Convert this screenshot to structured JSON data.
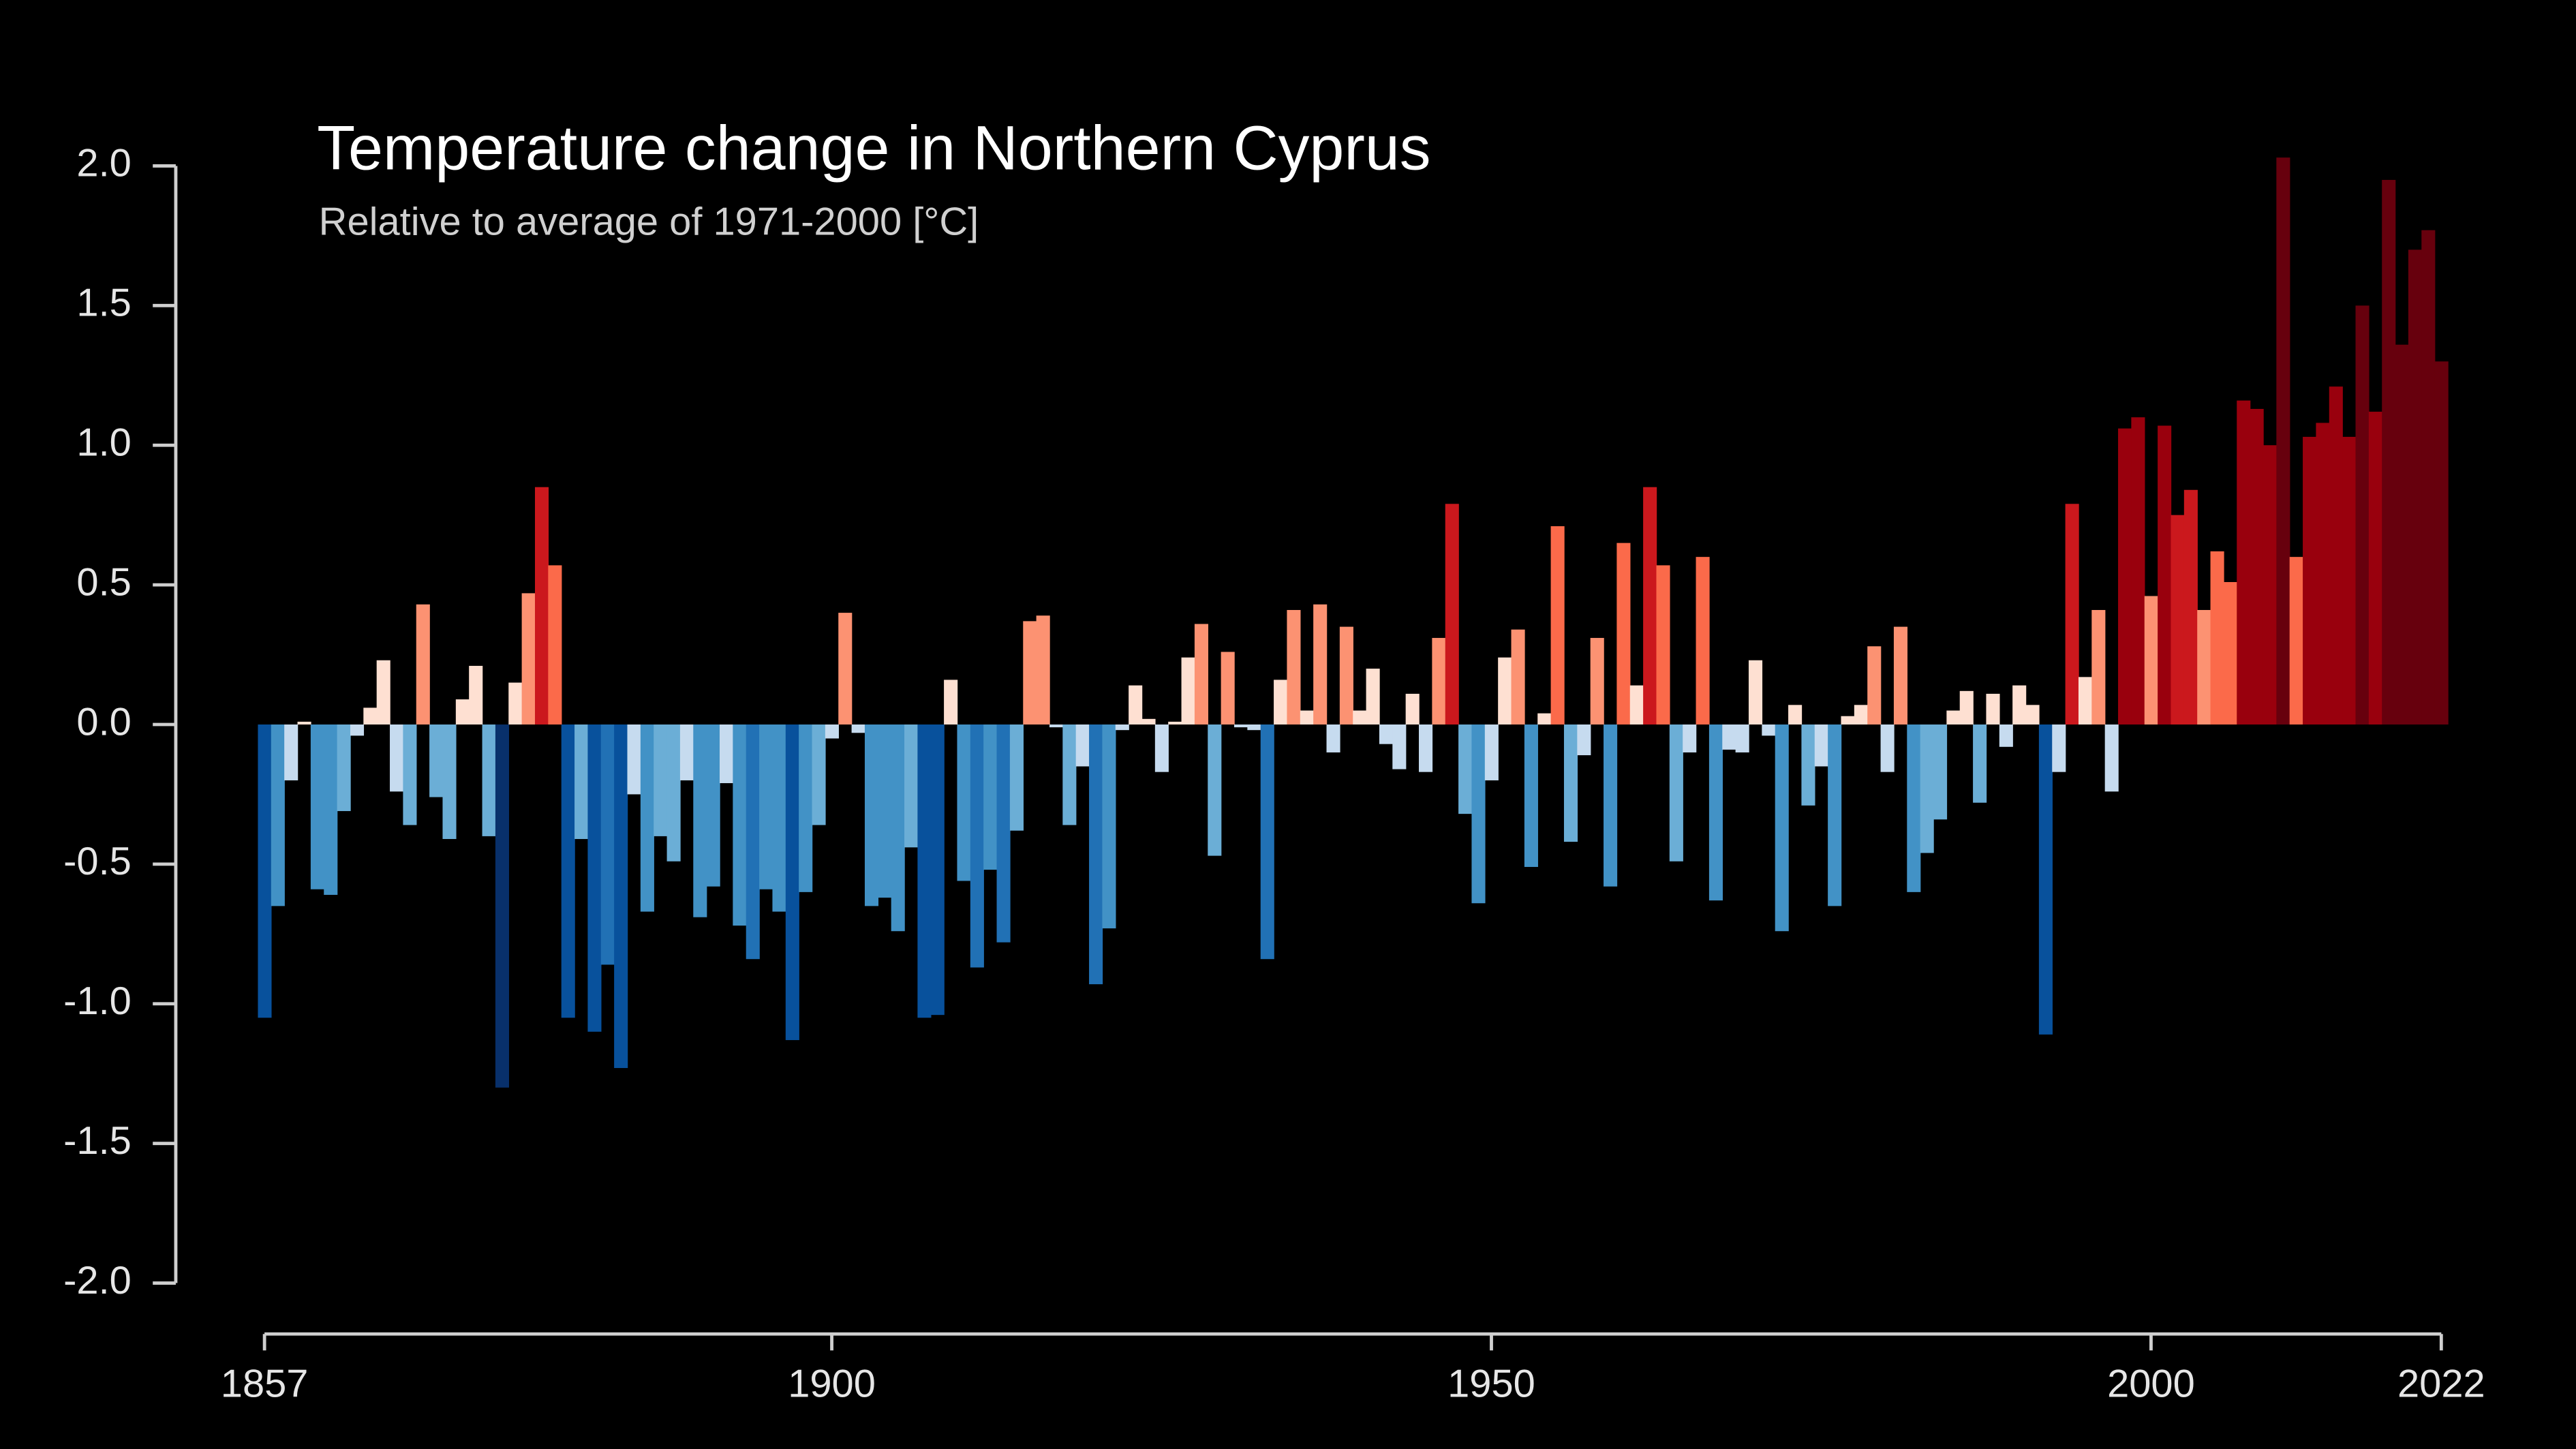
{
  "chart_data": {
    "type": "bar",
    "title": "Temperature change in Northern Cyprus",
    "subtitle": "Relative to average of 1971-2000  [°C]",
    "x": [
      1857,
      1858,
      1859,
      1860,
      1861,
      1862,
      1863,
      1864,
      1865,
      1866,
      1867,
      1868,
      1869,
      1870,
      1871,
      1872,
      1873,
      1874,
      1875,
      1876,
      1877,
      1878,
      1879,
      1880,
      1881,
      1882,
      1883,
      1884,
      1885,
      1886,
      1887,
      1888,
      1889,
      1890,
      1891,
      1892,
      1893,
      1894,
      1895,
      1896,
      1897,
      1898,
      1899,
      1900,
      1901,
      1902,
      1903,
      1904,
      1905,
      1906,
      1907,
      1908,
      1909,
      1910,
      1911,
      1912,
      1913,
      1914,
      1915,
      1916,
      1917,
      1918,
      1919,
      1920,
      1921,
      1922,
      1923,
      1924,
      1925,
      1926,
      1927,
      1928,
      1929,
      1930,
      1931,
      1932,
      1933,
      1934,
      1935,
      1936,
      1937,
      1938,
      1939,
      1940,
      1941,
      1942,
      1943,
      1944,
      1945,
      1946,
      1947,
      1948,
      1949,
      1950,
      1951,
      1952,
      1953,
      1954,
      1955,
      1956,
      1957,
      1958,
      1959,
      1960,
      1961,
      1962,
      1963,
      1964,
      1965,
      1966,
      1967,
      1968,
      1969,
      1970,
      1971,
      1972,
      1973,
      1974,
      1975,
      1976,
      1977,
      1978,
      1979,
      1980,
      1981,
      1982,
      1983,
      1984,
      1985,
      1986,
      1987,
      1988,
      1989,
      1990,
      1991,
      1992,
      1993,
      1994,
      1995,
      1996,
      1997,
      1998,
      1999,
      2000,
      2001,
      2002,
      2003,
      2004,
      2005,
      2006,
      2007,
      2008,
      2009,
      2010,
      2011,
      2012,
      2013,
      2014,
      2015,
      2016,
      2017,
      2018,
      2019,
      2020,
      2021,
      2022
    ],
    "values": [
      -1.05,
      -0.65,
      -0.2,
      0.01,
      -0.59,
      -0.61,
      -0.31,
      -0.04,
      0.06,
      0.23,
      -0.24,
      -0.36,
      0.43,
      -0.26,
      -0.41,
      0.09,
      0.21,
      -0.4,
      -1.3,
      0.15,
      0.47,
      0.85,
      0.57,
      -1.05,
      -0.41,
      -1.1,
      -0.86,
      -1.23,
      -0.25,
      -0.67,
      -0.4,
      -0.49,
      -0.2,
      -0.69,
      -0.58,
      -0.21,
      -0.72,
      -0.84,
      -0.59,
      -0.67,
      -1.13,
      -0.6,
      -0.36,
      -0.05,
      0.4,
      -0.03,
      -0.65,
      -0.62,
      -0.74,
      -0.44,
      -1.05,
      -1.04,
      0.16,
      -0.56,
      -0.87,
      -0.52,
      -0.78,
      -0.38,
      0.37,
      0.39,
      -0.01,
      -0.36,
      -0.15,
      -0.93,
      -0.73,
      -0.02,
      0.14,
      0.02,
      -0.17,
      0.01,
      0.24,
      0.36,
      -0.47,
      0.26,
      -0.01,
      -0.02,
      -0.84,
      0.16,
      0.41,
      0.05,
      0.43,
      -0.1,
      0.35,
      0.05,
      0.2,
      -0.07,
      -0.16,
      0.11,
      -0.17,
      0.31,
      0.79,
      -0.32,
      -0.64,
      -0.2,
      0.24,
      0.34,
      -0.51,
      0.04,
      0.71,
      -0.42,
      -0.11,
      0.31,
      -0.58,
      0.65,
      0.14,
      0.85,
      0.57,
      -0.49,
      -0.1,
      0.6,
      -0.63,
      -0.09,
      -0.1,
      0.23,
      -0.04,
      -0.74,
      0.07,
      -0.29,
      -0.15,
      -0.65,
      0.03,
      0.07,
      0.28,
      -0.17,
      0.35,
      -0.6,
      -0.46,
      -0.34,
      0.05,
      0.12,
      -0.28,
      0.11,
      -0.08,
      0.14,
      0.07,
      -1.11,
      -0.17,
      0.79,
      0.17,
      0.41,
      -0.24,
      1.06,
      1.1,
      0.46,
      1.07,
      0.75,
      0.84,
      0.41,
      0.62,
      0.51,
      1.16,
      1.13,
      1.0,
      2.03,
      0.6,
      1.03,
      1.08,
      1.21,
      1.03,
      1.5,
      1.12,
      1.95,
      1.36,
      1.7,
      1.77,
      1.3
    ],
    "colors": [
      "#08306b",
      "#08306b",
      "#08306b",
      "#08519c",
      "#2171b5",
      "#4292c6",
      "#6baed6",
      "#c6dbef",
      "#fee0d2",
      "#fc9272",
      "#fb6a4a",
      "#cb181d",
      "#99000d",
      "#67000d",
      "#67000d",
      "#67000d"
    ],
    "xlim": [
      1857,
      2022
    ],
    "xticks": [
      1857,
      1900,
      1950,
      2000,
      2022
    ],
    "ylim": [
      -2.0,
      2.0
    ],
    "yticks": [
      {
        "value": -2.0,
        "label": "-2.0"
      },
      {
        "value": -1.5,
        "label": "-1.5"
      },
      {
        "value": -1.0,
        "label": "-1.0"
      },
      {
        "value": -0.5,
        "label": "-0.5"
      },
      {
        "value": 0.0,
        "label": "0.0"
      },
      {
        "value": 0.5,
        "label": "0.5"
      },
      {
        "value": 1.0,
        "label": "1.0"
      },
      {
        "value": 1.5,
        "label": "1.5"
      },
      {
        "value": 2.0,
        "label": "2.0"
      }
    ]
  }
}
